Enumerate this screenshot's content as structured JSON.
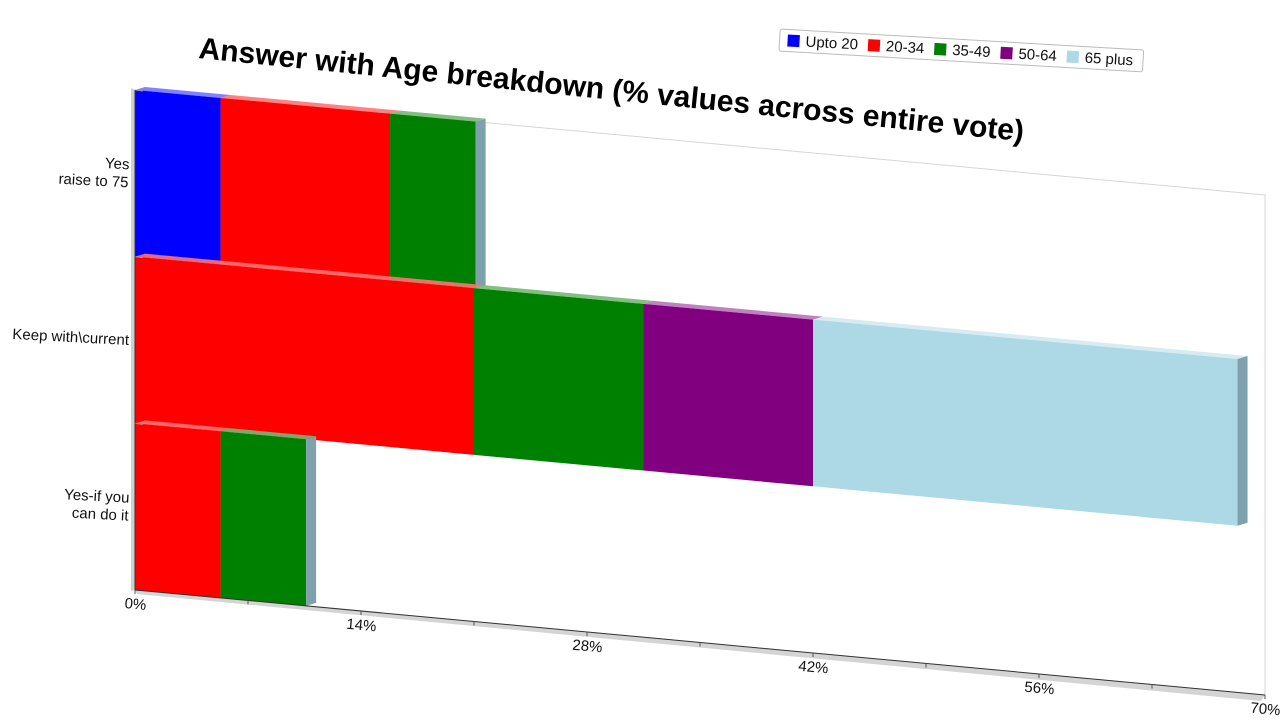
{
  "chart_data": {
    "type": "bar",
    "orientation": "horizontal",
    "stacked": true,
    "three_d": true,
    "title": "Answer with Age breakdown (% values across entire vote)",
    "categories": [
      "Yes\nraise to 75",
      "Keep with\\current",
      "Yes-if you\ncan do it"
    ],
    "series": [
      {
        "name": "Upto 20",
        "color": "#0000ff",
        "values": [
          5.3,
          0,
          0
        ]
      },
      {
        "name": "20-34",
        "color": "#ff0000",
        "values": [
          10.5,
          21.0,
          5.3
        ]
      },
      {
        "name": "35-49",
        "color": "#008000",
        "values": [
          5.3,
          10.5,
          5.3
        ]
      },
      {
        "name": "50-64",
        "color": "#800080",
        "values": [
          0,
          10.5,
          0
        ]
      },
      {
        "name": "65 plus",
        "color": "#add8e6",
        "values": [
          0,
          26.3,
          0
        ]
      }
    ],
    "x_ticks": [
      "0%",
      "14%",
      "28%",
      "42%",
      "56%",
      "70%"
    ],
    "xlim": [
      0,
      70
    ],
    "legend_position": "top-right",
    "grid": false
  }
}
